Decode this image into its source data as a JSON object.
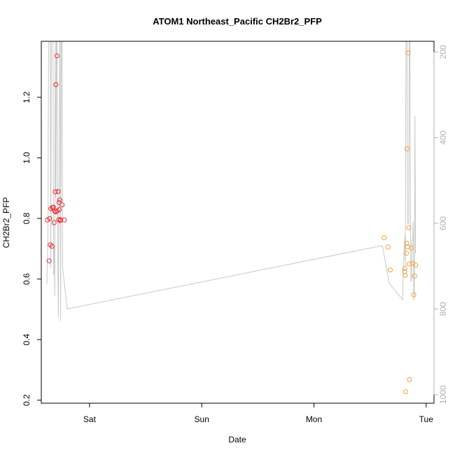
{
  "chart_data": {
    "type": "scatter",
    "title": "ATOM1 Northeast_Pacific CH2Br2_PFP",
    "xlabel": "Date",
    "ylabel": "CH2Br2_PFP",
    "x_unit": "days",
    "x_range": [
      -0.43,
      3.07
    ],
    "ylim": [
      0.19,
      1.385
    ],
    "x_ticks": [
      {
        "value": 0,
        "label": "Sat"
      },
      {
        "value": 1,
        "label": "Sun"
      },
      {
        "value": 2,
        "label": "Mon"
      },
      {
        "value": 3,
        "label": "Tue"
      }
    ],
    "y_ticks": [
      {
        "value": 0.2,
        "label": "0.2"
      },
      {
        "value": 0.4,
        "label": "0.4"
      },
      {
        "value": 0.6,
        "label": "0.6"
      },
      {
        "value": 0.8,
        "label": "0.8"
      },
      {
        "value": 1.0,
        "label": "1.0"
      },
      {
        "value": 1.2,
        "label": "1.2"
      }
    ],
    "y2lim": [
      1020,
      175
    ],
    "y2_ticks": [
      {
        "value": 200,
        "label": "200"
      },
      {
        "value": 400,
        "label": "400"
      },
      {
        "value": 600,
        "label": "600"
      },
      {
        "value": 800,
        "label": "800"
      },
      {
        "value": 1000,
        "label": "1000"
      }
    ],
    "series": [
      {
        "color": "#e8292b",
        "points": [
          [
            -0.375,
            0.795
          ],
          [
            -0.36,
            0.66
          ],
          [
            -0.355,
            0.8
          ],
          [
            -0.35,
            0.713
          ],
          [
            -0.345,
            0.832
          ],
          [
            -0.335,
            0.708
          ],
          [
            -0.33,
            0.836
          ],
          [
            -0.322,
            0.837
          ],
          [
            -0.316,
            0.786
          ],
          [
            -0.31,
            0.824
          ],
          [
            -0.305,
            0.888
          ],
          [
            -0.3,
            0.822
          ],
          [
            -0.3,
            1.242
          ],
          [
            -0.29,
            1.337
          ],
          [
            -0.288,
            0.825
          ],
          [
            -0.28,
            0.889
          ],
          [
            -0.276,
            0.796
          ],
          [
            -0.272,
            0.853
          ],
          [
            -0.27,
            0.829
          ],
          [
            -0.265,
            0.861
          ],
          [
            -0.262,
            0.793
          ],
          [
            -0.258,
            0.796
          ],
          [
            -0.245,
            0.845
          ],
          [
            -0.225,
            0.795
          ]
        ]
      },
      {
        "color": "#f4a03c",
        "points": [
          [
            2.625,
            0.736
          ],
          [
            2.66,
            0.706
          ],
          [
            2.68,
            0.63
          ],
          [
            2.81,
            0.635
          ],
          [
            2.81,
            0.625
          ],
          [
            2.815,
            0.612
          ],
          [
            2.818,
            0.228
          ],
          [
            2.825,
            0.685
          ],
          [
            2.828,
            0.718
          ],
          [
            2.83,
            1.03
          ],
          [
            2.835,
            0.706
          ],
          [
            2.84,
            1.347
          ],
          [
            2.845,
            0.77
          ],
          [
            2.848,
            0.65
          ],
          [
            2.852,
            0.268
          ],
          [
            2.868,
            0.703
          ],
          [
            2.88,
            0.652
          ],
          [
            2.89,
            0.548
          ],
          [
            2.898,
            0.61
          ],
          [
            2.905,
            0.646
          ]
        ]
      }
    ],
    "altitude_line": {
      "color": "#c8c8c8",
      "points": [
        [
          -0.38,
          742
        ],
        [
          -0.37,
          610
        ],
        [
          -0.365,
          120
        ],
        [
          -0.35,
          120
        ],
        [
          -0.345,
          705
        ],
        [
          -0.34,
          120
        ],
        [
          -0.325,
          120
        ],
        [
          -0.32,
          720
        ],
        [
          -0.316,
          650
        ],
        [
          -0.31,
          770
        ],
        [
          -0.305,
          120
        ],
        [
          -0.3,
          540
        ],
        [
          -0.295,
          120
        ],
        [
          -0.29,
          120
        ],
        [
          -0.282,
          715
        ],
        [
          -0.278,
          820
        ],
        [
          -0.27,
          430
        ],
        [
          -0.266,
          120
        ],
        [
          -0.262,
          120
        ],
        [
          -0.258,
          828
        ],
        [
          -0.252,
          120
        ],
        [
          -0.245,
          120
        ],
        [
          -0.24,
          704
        ],
        [
          -0.2,
          800
        ],
        [
          2.61,
          652
        ],
        [
          2.67,
          740
        ],
        [
          2.79,
          778
        ],
        [
          2.8,
          680
        ],
        [
          2.81,
          630
        ],
        [
          2.815,
          700
        ],
        [
          2.82,
          130
        ],
        [
          2.825,
          120
        ],
        [
          2.83,
          120
        ],
        [
          2.835,
          600
        ],
        [
          2.845,
          600
        ],
        [
          2.85,
          130
        ],
        [
          2.855,
          120
        ],
        [
          2.86,
          600
        ],
        [
          2.865,
          735
        ],
        [
          2.87,
          735
        ],
        [
          2.875,
          640
        ],
        [
          2.88,
          640
        ],
        [
          2.885,
          595
        ],
        [
          2.89,
          780
        ],
        [
          2.895,
          760
        ],
        [
          2.9,
          350
        ],
        [
          2.905,
          670
        ]
      ]
    }
  }
}
